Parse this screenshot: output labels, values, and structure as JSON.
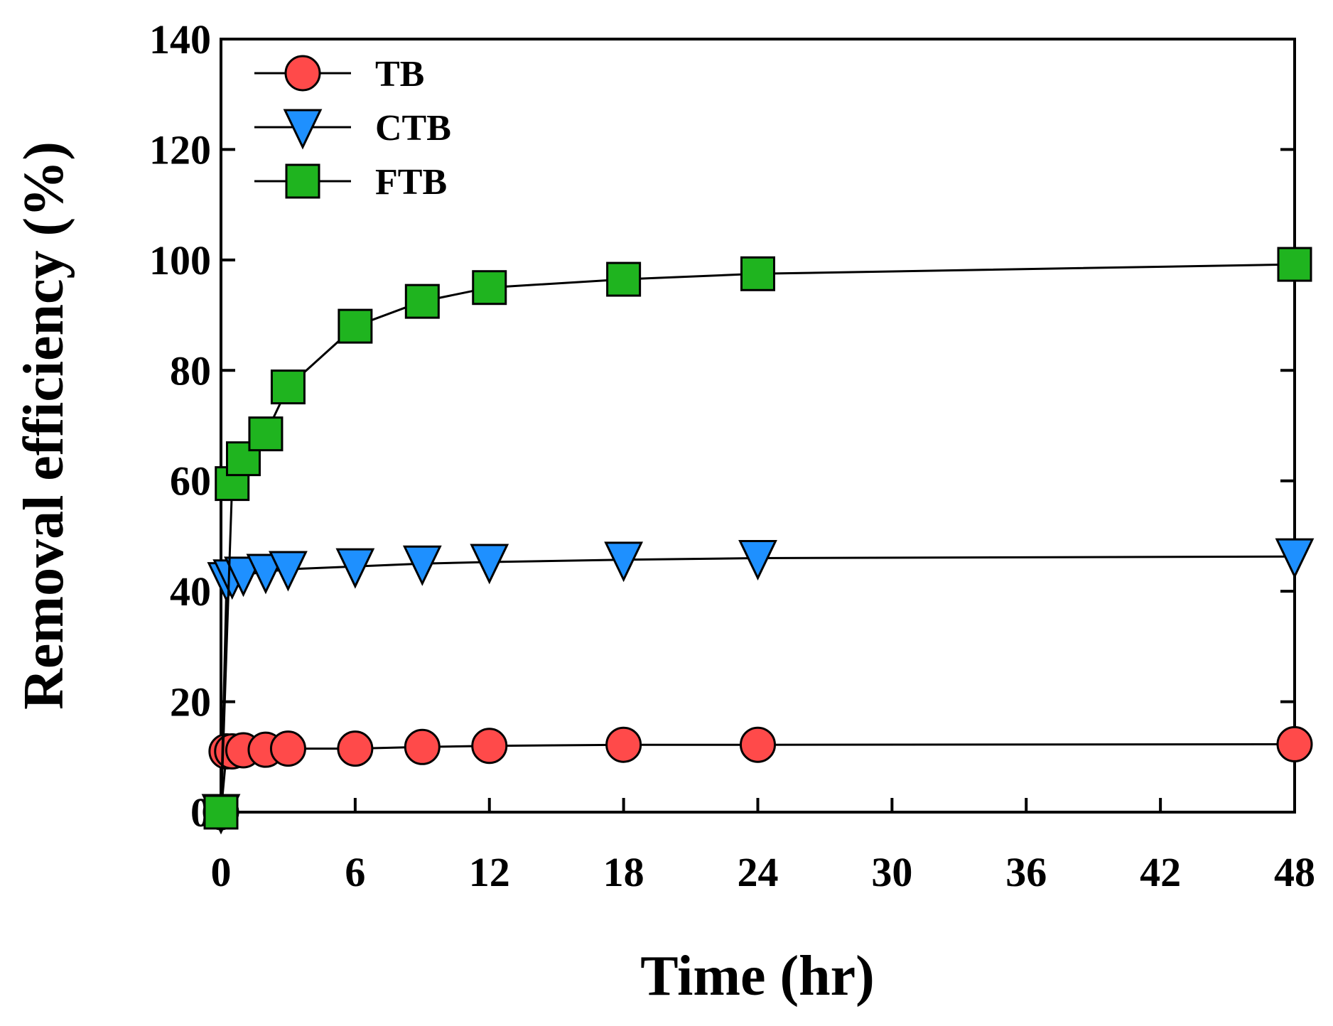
{
  "chart_data": {
    "type": "line",
    "title": "",
    "xlabel": "Time (hr)",
    "ylabel": "Removal efficiency (%)",
    "xlim": [
      0,
      48
    ],
    "ylim": [
      0,
      140
    ],
    "xticks": [
      0,
      6,
      12,
      18,
      24,
      30,
      36,
      42,
      48
    ],
    "yticks": [
      0,
      20,
      40,
      60,
      80,
      100,
      120,
      140
    ],
    "grid": false,
    "legend_position": "top-left",
    "series": [
      {
        "name": "TB",
        "marker": "circle",
        "color": "#ff4a4a",
        "x": [
          0,
          0.25,
          0.5,
          1,
          2,
          3,
          6,
          9,
          12,
          18,
          24,
          48
        ],
        "y": [
          0,
          11,
          11,
          11.2,
          11.3,
          11.5,
          11.5,
          11.8,
          12,
          12.2,
          12.2,
          12.3
        ]
      },
      {
        "name": "CTB",
        "marker": "triangle-down",
        "color": "#1e90ff",
        "x": [
          0,
          0.25,
          0.5,
          1,
          2,
          3,
          6,
          9,
          12,
          18,
          24,
          48
        ],
        "y": [
          0,
          42,
          42.5,
          43,
          43.5,
          44,
          44.5,
          45,
          45.3,
          45.7,
          46,
          46.3
        ]
      },
      {
        "name": "FTB",
        "marker": "square",
        "color": "#1fb41f",
        "x": [
          0,
          0.5,
          1,
          2,
          3,
          6,
          9,
          12,
          18,
          24,
          48
        ],
        "y": [
          0,
          59.5,
          64,
          68.5,
          77,
          88,
          92.5,
          95,
          96.5,
          97.5,
          99.2
        ]
      }
    ]
  }
}
